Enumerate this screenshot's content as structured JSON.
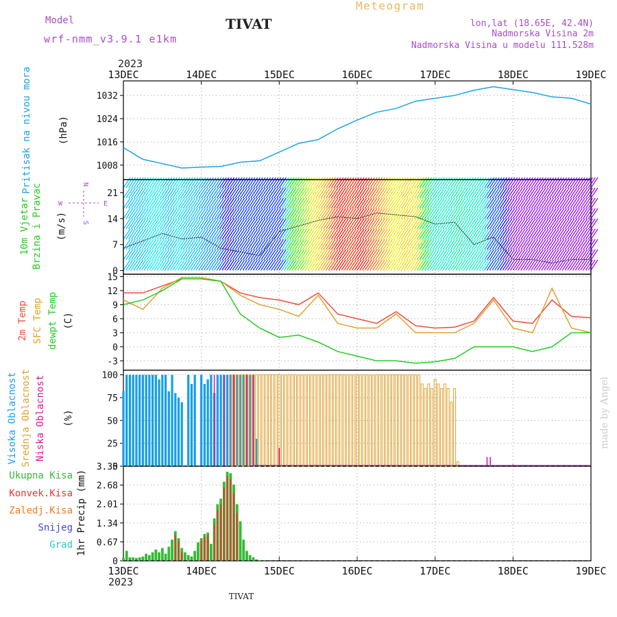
{
  "header": {
    "model_label": "Model",
    "model_name": "wrf-nmm_v3.9.1 e1km",
    "station": "TIVAT",
    "product": "Meteogram",
    "coords": "lon,lat (18.65E, 42.4N)",
    "elev_line": "Nadmorska Visina 2m",
    "model_elev_line": "Nadmorska Visina u modelu 111.528m",
    "year": "2023",
    "footer_station": "TIVAT",
    "credit": "made by Angel"
  },
  "colors": {
    "pressure": "#1aa3e8",
    "temp2m": "#f04b3c",
    "sfc": "#e0a030",
    "dew": "#22cc22",
    "cloud_high": "#1a9fe8",
    "cloud_mid": "#e0a030",
    "cloud_low": "#e0189a",
    "precip_total": "#33bb33",
    "precip_conv": "#ee3333",
    "precip_frozen": "#ee7a22",
    "snow": "#4444dd",
    "hail": "#22cccc",
    "label_purple": "#a64cc8",
    "label_orange": "#e8b860"
  },
  "chart_data": [
    {
      "type": "line",
      "panel": "pressure",
      "ylabel_outer": "Pritisak na nivou mora",
      "ylabel_unit": "(hPa)",
      "ylim": [
        1003,
        1037
      ],
      "yticks": [
        "1008",
        "1016",
        "1024",
        "1032"
      ],
      "x_day_ticks": [
        "13DEC",
        "14DEC",
        "15DEC",
        "16DEC",
        "17DEC",
        "18DEC",
        "19DEC"
      ],
      "x_hours": [
        0,
        6,
        12,
        18,
        24,
        30,
        36,
        42,
        48,
        54,
        60,
        66,
        72,
        78,
        84,
        90,
        96,
        102,
        108,
        114,
        120,
        126,
        132,
        138,
        144
      ],
      "series": [
        {
          "values": [
            1014,
            1010,
            1008.5,
            1007,
            1007.3,
            1007.5,
            1009,
            1009.5,
            1012.5,
            1015.5,
            1016.8,
            1020.5,
            1023.5,
            1026.2,
            1027.5,
            1030,
            1031,
            1032,
            1033.8,
            1035,
            1034,
            1033,
            1031.5,
            1031,
            1029
          ]
        }
      ]
    },
    {
      "type": "line",
      "panel": "wind",
      "ylabel_outer": [
        "10m Vjetar",
        "Brzina i Pravac"
      ],
      "ylabel_unit": "(m/s)",
      "ylim": [
        -1,
        24.5
      ],
      "yticks": [
        "0",
        "7",
        "14",
        "21"
      ],
      "compass": [
        "N",
        "W",
        "E",
        "S"
      ],
      "x_hours": [
        0,
        6,
        12,
        18,
        24,
        30,
        36,
        42,
        48,
        54,
        60,
        66,
        72,
        78,
        84,
        90,
        96,
        102,
        108,
        114,
        120,
        126,
        132,
        138,
        144
      ],
      "series": [
        {
          "values": [
            6,
            8,
            10,
            8.5,
            9,
            6,
            5,
            4,
            10.5,
            12,
            13.5,
            14.5,
            14,
            15.5,
            15,
            14.5,
            12.5,
            13,
            7,
            9,
            3,
            3,
            2,
            3,
            3
          ]
        }
      ],
      "band_speed_hours": [
        0,
        5,
        7,
        9,
        11,
        12,
        14,
        16,
        18,
        20,
        22,
        24,
        26,
        28,
        29.5,
        31,
        33,
        35,
        37,
        38.5,
        40,
        42,
        44,
        46,
        48,
        50,
        52,
        54,
        56,
        58,
        60,
        62,
        64,
        66,
        68,
        70,
        72,
        74,
        76,
        78,
        80,
        82,
        84,
        86,
        88,
        89.5,
        91,
        92.5,
        94,
        96,
        98,
        100,
        102,
        104,
        106,
        108,
        110,
        112,
        114,
        116,
        118,
        120,
        122,
        124,
        126,
        128,
        130,
        132,
        134,
        136,
        138,
        140,
        142,
        144
      ],
      "band_speeds": [
        9,
        9,
        10,
        10,
        10,
        9,
        9,
        10,
        9,
        9,
        9,
        8,
        8,
        8,
        6,
        4,
        6,
        6,
        6,
        6,
        6,
        6,
        6,
        6,
        6,
        14,
        16,
        17,
        19,
        20,
        21,
        22,
        24,
        25,
        24,
        24,
        25,
        24,
        23,
        22,
        21,
        20,
        20,
        21,
        20,
        21,
        15,
        14,
        11,
        11,
        11,
        11,
        12,
        11,
        11,
        11,
        11,
        6,
        7,
        5,
        3,
        2,
        2,
        2,
        2,
        2,
        2,
        2,
        2,
        2,
        2,
        2,
        2,
        2
      ]
    },
    {
      "type": "line",
      "panel": "temperature",
      "ylabel_outer": [
        "2m Temp",
        "SFC Temp",
        "dewpt Temp"
      ],
      "ylabel_unit": "(C)",
      "ylim": [
        -5,
        15.5
      ],
      "yticks": [
        "-3",
        "0",
        "3",
        "6",
        "9",
        "12",
        "15"
      ],
      "x_hours": [
        0,
        6,
        12,
        18,
        24,
        30,
        36,
        42,
        48,
        54,
        60,
        66,
        72,
        78,
        84,
        90,
        96,
        102,
        108,
        114,
        120,
        126,
        132,
        138,
        144
      ],
      "series": [
        {
          "name": "2m Temp",
          "values": [
            11.5,
            11.5,
            13,
            14.5,
            14.5,
            14,
            11.5,
            10.5,
            10,
            9,
            11.5,
            7,
            6,
            5,
            7.5,
            4.5,
            4,
            4.2,
            5.5,
            10.5,
            5.5,
            5,
            10,
            6.5,
            6.2
          ]
        },
        {
          "name": "SFC Temp",
          "values": [
            10,
            8,
            12.5,
            14.8,
            14.8,
            14,
            11,
            9,
            8,
            6.5,
            11,
            5,
            4,
            4,
            7,
            3,
            3,
            3,
            5,
            10,
            4,
            3,
            12.5,
            4,
            3
          ]
        },
        {
          "name": "dewpt Temp",
          "values": [
            9,
            10,
            12,
            14.5,
            14.5,
            14,
            7,
            4,
            2,
            2.5,
            1,
            -1,
            -2,
            -3,
            -3,
            -3.5,
            -3.2,
            -2.5,
            0,
            0,
            0,
            -1,
            0,
            3,
            3
          ]
        }
      ]
    },
    {
      "type": "bar",
      "panel": "clouds",
      "ylabel_outer": [
        "Visoka Oblacnost",
        "Srednja Oblacnost",
        "Niska Oblacnost"
      ],
      "ylabel_unit": "(%)",
      "ylim": [
        0,
        105
      ],
      "yticks": [
        "0",
        "25",
        "50",
        "75",
        "100"
      ],
      "series": [
        {
          "name": "Visoka Oblacnost",
          "hours": [
            0,
            1,
            2,
            3,
            4,
            5,
            6,
            7,
            8,
            9,
            10,
            11,
            12,
            13,
            14,
            15,
            16,
            17,
            18,
            19,
            20,
            21,
            22,
            23,
            24,
            25,
            26,
            27,
            28,
            29,
            30,
            31,
            32,
            33,
            34,
            35,
            36,
            37,
            38,
            39,
            40,
            41,
            42
          ],
          "values": [
            82,
            100,
            100,
            100,
            100,
            100,
            100,
            100,
            100,
            100,
            100,
            95,
            100,
            100,
            82,
            100,
            80,
            75,
            70,
            0,
            100,
            90,
            100,
            0,
            100,
            90,
            95,
            100,
            80,
            100,
            100,
            100,
            100,
            100,
            100,
            100,
            100,
            100,
            100,
            100,
            100,
            30,
            0
          ]
        },
        {
          "name": "Srednja Oblacnost",
          "hours": [
            33,
            34,
            35,
            36,
            37,
            38,
            39,
            40,
            41,
            42,
            43,
            44,
            45,
            46,
            47,
            48,
            49,
            50,
            51,
            52,
            53,
            54,
            55,
            56,
            57,
            58,
            59,
            60,
            61,
            62,
            63,
            64,
            65,
            66,
            67,
            68,
            69,
            70,
            71,
            72,
            73,
            74,
            75,
            76,
            77,
            78,
            79,
            80,
            81,
            82,
            83,
            84,
            85,
            86,
            87,
            88,
            89,
            90,
            91,
            92,
            93,
            94,
            95,
            96,
            97,
            98,
            99,
            100,
            101,
            102,
            103
          ],
          "values": [
            100,
            100,
            100,
            100,
            100,
            100,
            100,
            100,
            100,
            100,
            100,
            100,
            100,
            100,
            100,
            100,
            100,
            100,
            100,
            100,
            100,
            100,
            100,
            100,
            100,
            100,
            100,
            100,
            100,
            100,
            100,
            100,
            100,
            100,
            100,
            100,
            100,
            100,
            100,
            100,
            100,
            100,
            100,
            100,
            100,
            100,
            100,
            100,
            100,
            100,
            100,
            100,
            100,
            100,
            100,
            100,
            100,
            100,
            100,
            90,
            85,
            90,
            85,
            95,
            90,
            85,
            90,
            85,
            70,
            85,
            5
          ]
        },
        {
          "name": "Niska Oblacnost",
          "hours": [
            28,
            31,
            34,
            38,
            40,
            48,
            112,
            113,
            120
          ],
          "values": [
            100,
            100,
            100,
            100,
            100,
            20,
            10,
            10,
            2
          ]
        }
      ]
    },
    {
      "type": "bar",
      "panel": "precip",
      "ylabel_outer": [
        "Ukupna Kisa",
        "Konvek.Kisa",
        "Zaledj.Kisa",
        "Snijeg",
        "Grad"
      ],
      "ylabel_unit": "1hr Precip (mm)",
      "ylim": [
        0,
        3.35
      ],
      "yticks": [
        "0",
        "0.67",
        "1.34",
        "2.01",
        "2.68",
        "3.35"
      ],
      "series": [
        {
          "name": "Ukupna Kisa",
          "hours": [
            0,
            1,
            2,
            3,
            4,
            5,
            6,
            7,
            8,
            9,
            10,
            11,
            12,
            13,
            14,
            15,
            16,
            17,
            18,
            19,
            20,
            21,
            22,
            23,
            24,
            25,
            26,
            27,
            28,
            29,
            30,
            31,
            32,
            33,
            34,
            35,
            36,
            37,
            38,
            39,
            40,
            41,
            42,
            43
          ],
          "values": [
            0.1,
            0.35,
            0.12,
            0.12,
            0.1,
            0.12,
            0.15,
            0.25,
            0.2,
            0.3,
            0.4,
            0.3,
            0.45,
            0.25,
            0.5,
            0.75,
            1.05,
            0.8,
            0.45,
            0.3,
            0.2,
            0.15,
            0.35,
            0.65,
            0.8,
            0.95,
            1.0,
            0.6,
            1.5,
            2.0,
            2.2,
            2.8,
            3.15,
            3.1,
            2.7,
            2.0,
            1.4,
            0.75,
            0.35,
            0.2,
            0.12,
            0.05,
            0.02,
            0.01
          ]
        },
        {
          "name": "Konvek.Kisa",
          "hours": [
            16,
            17,
            18,
            24,
            25,
            26,
            28,
            29,
            30,
            31,
            32,
            33,
            34,
            35
          ],
          "values": [
            0.9,
            0.7,
            0.3,
            0.7,
            0.85,
            0.9,
            1.3,
            1.8,
            2.0,
            2.6,
            3.0,
            2.9,
            2.4,
            1.7
          ]
        }
      ]
    }
  ]
}
